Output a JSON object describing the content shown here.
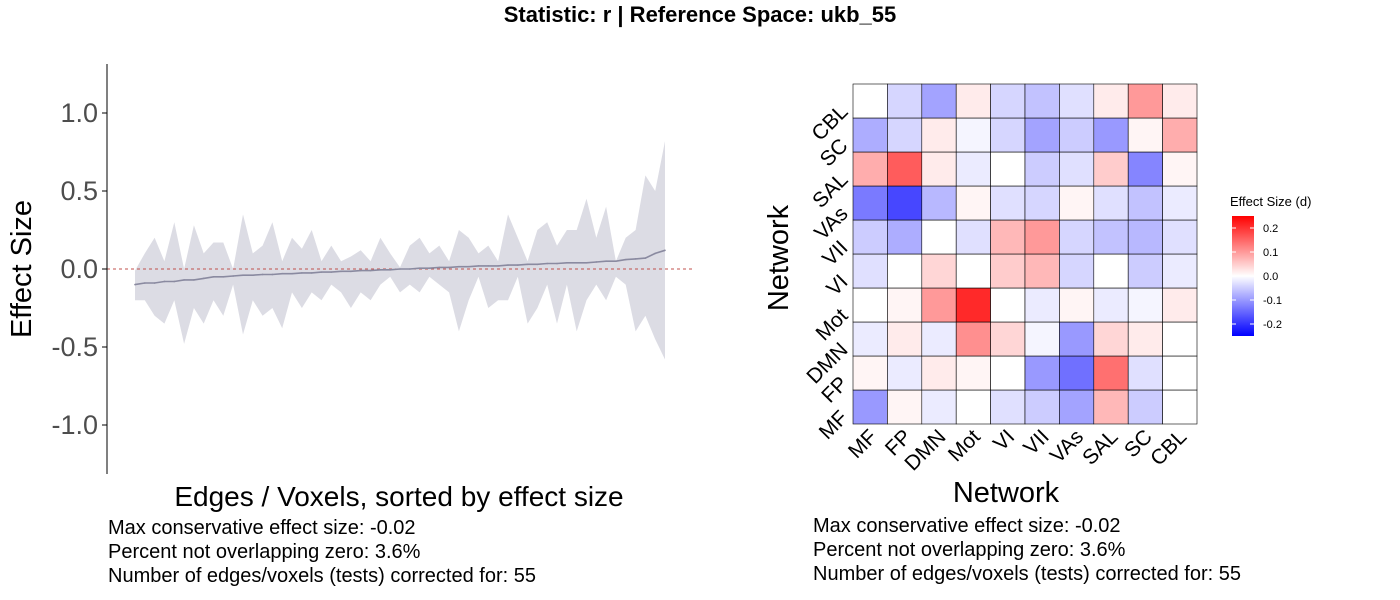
{
  "title": "Statistic: r   |  Reference Space: ukb_55",
  "left_captions": [
    "Max conservative effect size: -0.02",
    "Percent not overlapping zero: 3.6%",
    "Number of edges/voxels (tests) corrected for: 55"
  ],
  "right_captions": [
    "Max conservative effect size: -0.02",
    "Percent not overlapping zero: 3.6%",
    "Number of edges/voxels (tests) corrected for: 55"
  ],
  "colors": {
    "ci_band": "#dcdce4",
    "line": "#8a8aa0",
    "zero_line": "#c0504d",
    "low": "#0000ff",
    "mid": "#ffffff",
    "high": "#ff0000"
  },
  "chart_data": [
    {
      "type": "line",
      "xlabel": "Edges / Voxels, sorted by effect size",
      "ylabel": "Effect Size",
      "ylim": [
        -1.3,
        1.3
      ],
      "yticks": [
        1.0,
        0.5,
        0.0,
        -0.5,
        -1.0
      ],
      "ytick_labels": [
        "1.0",
        "0.5",
        "0.0",
        "-0.5",
        "-1.0"
      ],
      "x": [
        1,
        2,
        3,
        4,
        5,
        6,
        7,
        8,
        9,
        10,
        11,
        12,
        13,
        14,
        15,
        16,
        17,
        18,
        19,
        20,
        21,
        22,
        23,
        24,
        25,
        26,
        27,
        28,
        29,
        30,
        31,
        32,
        33,
        34,
        35,
        36,
        37,
        38,
        39,
        40,
        41,
        42,
        43,
        44,
        45,
        46,
        47,
        48,
        49,
        50,
        51,
        52,
        53,
        54,
        55
      ],
      "values": [
        -0.1,
        -0.09,
        -0.09,
        -0.08,
        -0.08,
        -0.07,
        -0.07,
        -0.06,
        -0.05,
        -0.05,
        -0.045,
        -0.04,
        -0.04,
        -0.035,
        -0.035,
        -0.03,
        -0.03,
        -0.025,
        -0.025,
        -0.02,
        -0.02,
        -0.015,
        -0.015,
        -0.01,
        -0.01,
        -0.005,
        -0.005,
        0.0,
        0.0,
        0.005,
        0.005,
        0.01,
        0.01,
        0.015,
        0.015,
        0.02,
        0.02,
        0.02,
        0.025,
        0.025,
        0.03,
        0.03,
        0.035,
        0.035,
        0.04,
        0.04,
        0.04,
        0.045,
        0.05,
        0.05,
        0.06,
        0.065,
        0.07,
        0.1,
        0.12
      ],
      "ci_upper": [
        -0.01,
        0.1,
        0.2,
        0.05,
        0.3,
        0.0,
        0.28,
        0.1,
        0.17,
        0.17,
        0.0,
        0.35,
        0.1,
        0.15,
        0.3,
        0.05,
        0.2,
        0.13,
        0.25,
        0.05,
        0.15,
        0.05,
        0.08,
        0.12,
        0.05,
        0.2,
        0.1,
        0.01,
        0.15,
        0.2,
        0.1,
        0.15,
        0.05,
        0.25,
        0.2,
        0.1,
        0.15,
        0.05,
        0.35,
        0.2,
        0.05,
        0.25,
        0.3,
        0.15,
        0.25,
        0.25,
        0.45,
        0.2,
        0.4,
        0.05,
        0.2,
        0.25,
        0.6,
        0.5,
        0.82
      ],
      "ci_lower": [
        -0.2,
        -0.2,
        -0.3,
        -0.35,
        -0.2,
        -0.48,
        -0.25,
        -0.35,
        -0.2,
        -0.3,
        -0.1,
        -0.42,
        -0.2,
        -0.3,
        -0.25,
        -0.38,
        -0.15,
        -0.25,
        -0.15,
        -0.2,
        -0.1,
        -0.15,
        -0.25,
        -0.15,
        -0.2,
        -0.1,
        -0.05,
        -0.15,
        -0.1,
        -0.15,
        -0.05,
        -0.1,
        -0.15,
        -0.4,
        -0.2,
        -0.05,
        -0.25,
        -0.2,
        -0.2,
        -0.05,
        -0.35,
        -0.25,
        -0.1,
        -0.35,
        -0.1,
        -0.4,
        -0.2,
        -0.1,
        -0.2,
        -0.05,
        -0.1,
        -0.4,
        -0.3,
        -0.45,
        -0.58
      ],
      "reference_line": 0.0
    },
    {
      "type": "heatmap",
      "xlabel": "Network",
      "ylabel": "Network",
      "x_categories": [
        "MF",
        "FP",
        "DMN",
        "Mot",
        "VI",
        "VII",
        "VAs",
        "SAL",
        "SC",
        "CBL"
      ],
      "y_categories": [
        "MF",
        "FP",
        "DMN",
        "Mot",
        "VI",
        "VII",
        "VAs",
        "SAL",
        "SC",
        "CBL"
      ],
      "values": [
        [
          -0.1,
          0.01,
          -0.02,
          0.0,
          -0.03,
          -0.05,
          -0.09,
          0.07,
          -0.05,
          0.0
        ],
        [
          0.01,
          -0.02,
          0.02,
          0.01,
          0.0,
          -0.1,
          -0.14,
          0.14,
          -0.03,
          0.0
        ],
        [
          -0.02,
          0.02,
          -0.02,
          0.11,
          0.04,
          -0.01,
          -0.1,
          0.04,
          0.02,
          0.0
        ],
        [
          0.0,
          0.01,
          0.1,
          0.21,
          0.0,
          -0.02,
          0.01,
          -0.02,
          -0.01,
          0.02
        ],
        [
          -0.03,
          0.0,
          0.04,
          0.0,
          0.05,
          0.07,
          -0.04,
          0.0,
          -0.05,
          -0.02
        ],
        [
          -0.05,
          -0.08,
          0.0,
          -0.03,
          0.07,
          0.1,
          -0.04,
          -0.06,
          -0.07,
          -0.03
        ],
        [
          -0.13,
          -0.18,
          -0.07,
          0.01,
          -0.03,
          -0.04,
          0.01,
          -0.03,
          -0.06,
          -0.02
        ],
        [
          0.08,
          0.16,
          0.02,
          -0.02,
          0.0,
          -0.05,
          -0.03,
          0.05,
          -0.12,
          0.01
        ],
        [
          -0.08,
          -0.04,
          0.02,
          -0.01,
          -0.04,
          -0.09,
          -0.05,
          -0.1,
          0.01,
          0.08
        ],
        [
          0.0,
          -0.04,
          -0.09,
          0.02,
          -0.04,
          -0.06,
          -0.03,
          0.02,
          0.1,
          0.02
        ]
      ],
      "legend": {
        "title": "Effect Size (d)",
        "ticks": [
          0.2,
          0.1,
          0.0,
          -0.1,
          -0.2
        ],
        "tick_labels": [
          "0.2",
          "0.1",
          "0.0",
          "-0.1",
          "-0.2"
        ],
        "range": [
          -0.25,
          0.25
        ]
      }
    }
  ]
}
